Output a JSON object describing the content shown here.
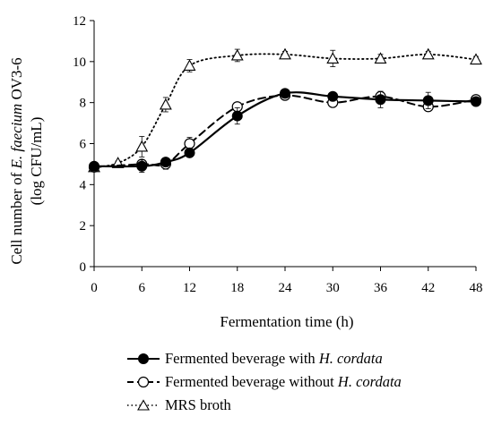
{
  "chart_data": {
    "type": "line",
    "xlabel": "Fermentation time (h)",
    "ylabel_line1_prefix": "Cell number of ",
    "ylabel_line1_italic": "E. faecium",
    "ylabel_line1_suffix": " OV3-6",
    "ylabel_line2": "(log CFU/mL)",
    "xlim": [
      0,
      48
    ],
    "ylim": [
      0,
      12
    ],
    "xticks": [
      0,
      6,
      12,
      18,
      24,
      30,
      36,
      42,
      48
    ],
    "yticks": [
      0,
      2,
      4,
      6,
      8,
      10,
      12
    ],
    "grid": false,
    "legend_position": "bottom",
    "series": [
      {
        "name_prefix": "Fermented beverage with ",
        "name_italic": "H. cordata",
        "marker": "filled-circle",
        "line": "solid",
        "x": [
          0,
          6,
          9,
          12,
          18,
          24,
          30,
          36,
          42,
          48
        ],
        "y": [
          4.9,
          4.9,
          5.1,
          5.55,
          7.35,
          8.45,
          8.3,
          8.15,
          8.1,
          8.05
        ],
        "err": [
          0.1,
          0.3,
          0.15,
          0.15,
          0.4,
          0.15,
          0.15,
          0.4,
          0.4,
          0.15
        ]
      },
      {
        "name_prefix": "Fermented beverage without ",
        "name_italic": "H. cordata",
        "marker": "open-circle",
        "line": "dashed",
        "x": [
          0,
          6,
          9,
          12,
          18,
          24,
          30,
          36,
          42,
          48
        ],
        "y": [
          4.85,
          5.0,
          5.0,
          6.0,
          7.8,
          8.35,
          8.0,
          8.3,
          7.8,
          8.15
        ],
        "err": [
          0.1,
          0.2,
          0.25,
          0.3,
          0.2,
          0.1,
          0.2,
          0.2,
          0.15,
          0.15
        ]
      },
      {
        "name": "MRS broth",
        "marker": "open-triangle",
        "line": "dotted",
        "x": [
          0,
          3,
          6,
          9,
          12,
          18,
          24,
          30,
          36,
          42,
          48
        ],
        "y": [
          4.85,
          5.05,
          5.85,
          7.9,
          9.8,
          10.3,
          10.35,
          10.15,
          10.15,
          10.35,
          10.1
        ],
        "err": [
          0.1,
          0.1,
          0.5,
          0.35,
          0.3,
          0.3,
          0.15,
          0.4,
          0.2,
          0.15,
          0.15
        ]
      }
    ]
  }
}
